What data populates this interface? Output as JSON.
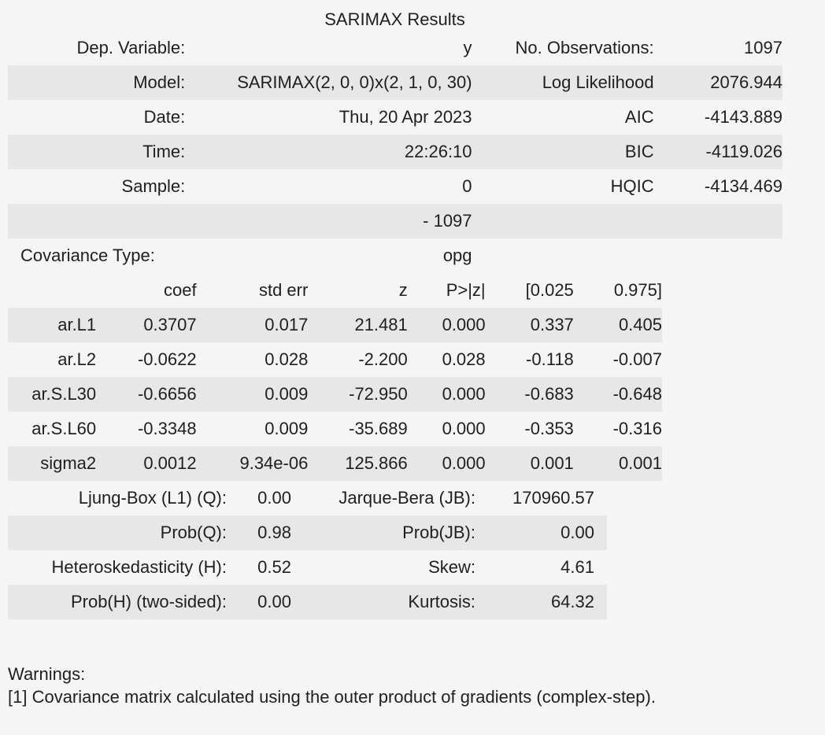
{
  "caption": "SARIMAX Results",
  "summary": [
    [
      "Dep. Variable:",
      "y",
      "No. Observations:",
      "1097"
    ],
    [
      "Model:",
      "SARIMAX(2, 0, 0)x(2, 1, 0, 30)",
      "Log Likelihood",
      "2076.944"
    ],
    [
      "Date:",
      "Thu, 20 Apr 2023",
      "AIC",
      "-4143.889"
    ],
    [
      "Time:",
      "22:26:10",
      "BIC",
      "-4119.026"
    ],
    [
      "Sample:",
      "0",
      "HQIC",
      "-4134.469"
    ],
    [
      "",
      "- 1097",
      "",
      ""
    ],
    [
      "Covariance Type:",
      "opg",
      "",
      ""
    ]
  ],
  "coef_headers": [
    "",
    "coef",
    "std err",
    "z",
    "P>|z|",
    "[0.025",
    "0.975]"
  ],
  "coef_rows": [
    [
      "ar.L1",
      "0.3707",
      "0.017",
      "21.481",
      "0.000",
      "0.337",
      "0.405"
    ],
    [
      "ar.L2",
      "-0.0622",
      "0.028",
      "-2.200",
      "0.028",
      "-0.118",
      "-0.007"
    ],
    [
      "ar.S.L30",
      "-0.6656",
      "0.009",
      "-72.950",
      "0.000",
      "-0.683",
      "-0.648"
    ],
    [
      "ar.S.L60",
      "-0.3348",
      "0.009",
      "-35.689",
      "0.000",
      "-0.353",
      "-0.316"
    ],
    [
      "sigma2",
      "0.0012",
      "9.34e-06",
      "125.866",
      "0.000",
      "0.001",
      "0.001"
    ]
  ],
  "diagnostics": [
    [
      "Ljung-Box (L1) (Q):",
      "0.00",
      "Jarque-Bera (JB):",
      "170960.57"
    ],
    [
      "Prob(Q):",
      "0.98",
      "Prob(JB):",
      "0.00"
    ],
    [
      "Heteroskedasticity (H):",
      "0.52",
      "Skew:",
      "4.61"
    ],
    [
      "Prob(H) (two-sided):",
      "0.00",
      "Kurtosis:",
      "64.32"
    ]
  ],
  "warnings_title": "Warnings:",
  "warnings": [
    "[1] Covariance matrix calculated using the outer product of gradients (complex-step)."
  ]
}
